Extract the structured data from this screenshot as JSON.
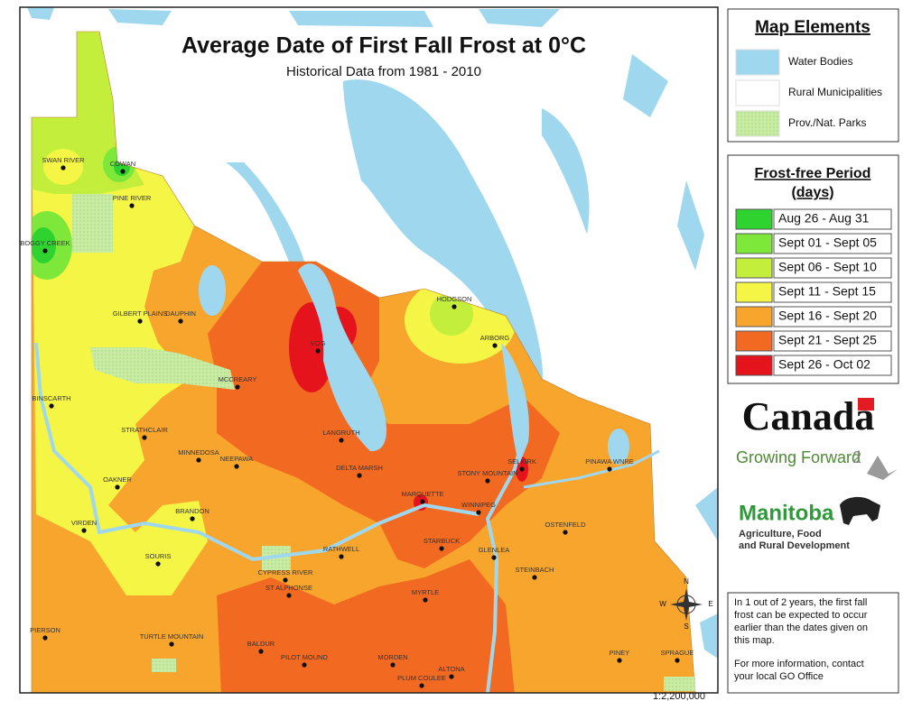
{
  "header": {
    "title": "Average Date of First Fall Frost at 0°C",
    "subtitle": "Historical Data from 1981 - 2010"
  },
  "map_elements": {
    "title": "Map Elements",
    "items": [
      {
        "label": "Water Bodies",
        "color": "#9fd8ee"
      },
      {
        "label": "Rural Municipalities",
        "color": "#ffffff"
      },
      {
        "label": "Prov./Nat. Parks",
        "color": "#c9eca4"
      }
    ]
  },
  "frost_period": {
    "title_lines": [
      "Frost-free Period",
      "(days)"
    ],
    "items": [
      {
        "label": "Aug 26 - Aug 31",
        "color": "#2fd32f"
      },
      {
        "label": "Sept 01 - Sept 05",
        "color": "#7ee83a"
      },
      {
        "label": "Sept 06 - Sept 10",
        "color": "#c4ee3c"
      },
      {
        "label": "Sept 11 - Sept 15",
        "color": "#f4f545"
      },
      {
        "label": "Sept 16 - Sept 20",
        "color": "#f8a52e"
      },
      {
        "label": "Sept 21 - Sept 25",
        "color": "#f26a21"
      },
      {
        "label": "Sept 26 - Oct 02",
        "color": "#e5141c"
      }
    ]
  },
  "towns": [
    "SWAN RIVER",
    "COWAN",
    "PINE RIVER",
    "BOGGY CREEK",
    "GILBERT PLAINS",
    "DAUPHIN",
    "HODGSON",
    "ARBORG",
    "VOG",
    "MCCREARY",
    "BINSCARTH",
    "STRATHCLAIR",
    "LANGRUTH",
    "MINNEDOSA",
    "NEEPAWA",
    "DELTA MARSH",
    "STONY MOUNTAIN",
    "SELKIRK",
    "PINAWA WNRE",
    "OAKNER",
    "MARQUETTE",
    "WINNIPEG",
    "BRANDON",
    "VIRDEN",
    "OSTENFELD",
    "STARBUCK",
    "RATHWELL",
    "GLENLEA",
    "SOURIS",
    "CYPRESS RIVER",
    "STEINBACH",
    "ST ALPHONSE",
    "MYRTLE",
    "BALDUR",
    "PILOT MOUND",
    "MORDEN",
    "ALTONA",
    "PIERSON",
    "TURTLE MOUNTAIN",
    "PLUM COULEE",
    "PINEY",
    "SPRAGUE"
  ],
  "compass": {
    "north": "N",
    "east": "E",
    "south": "S",
    "west": "W"
  },
  "scale": "1:2,200,000",
  "logos": {
    "canada": "Canada",
    "growing_forward": "Growing Forward",
    "growing_forward_number": "2",
    "manitoba": "Manitoba",
    "manitoba_lines": [
      "Agriculture, Food",
      "and Rural Development"
    ]
  },
  "note": {
    "paragraphs": [
      [
        "In 1 out of 2 years, the first fall",
        "frost can be expected to occur",
        "earlier than the dates given on",
        "this map."
      ],
      [
        "For more information, contact",
        "your local GO Office"
      ]
    ]
  }
}
